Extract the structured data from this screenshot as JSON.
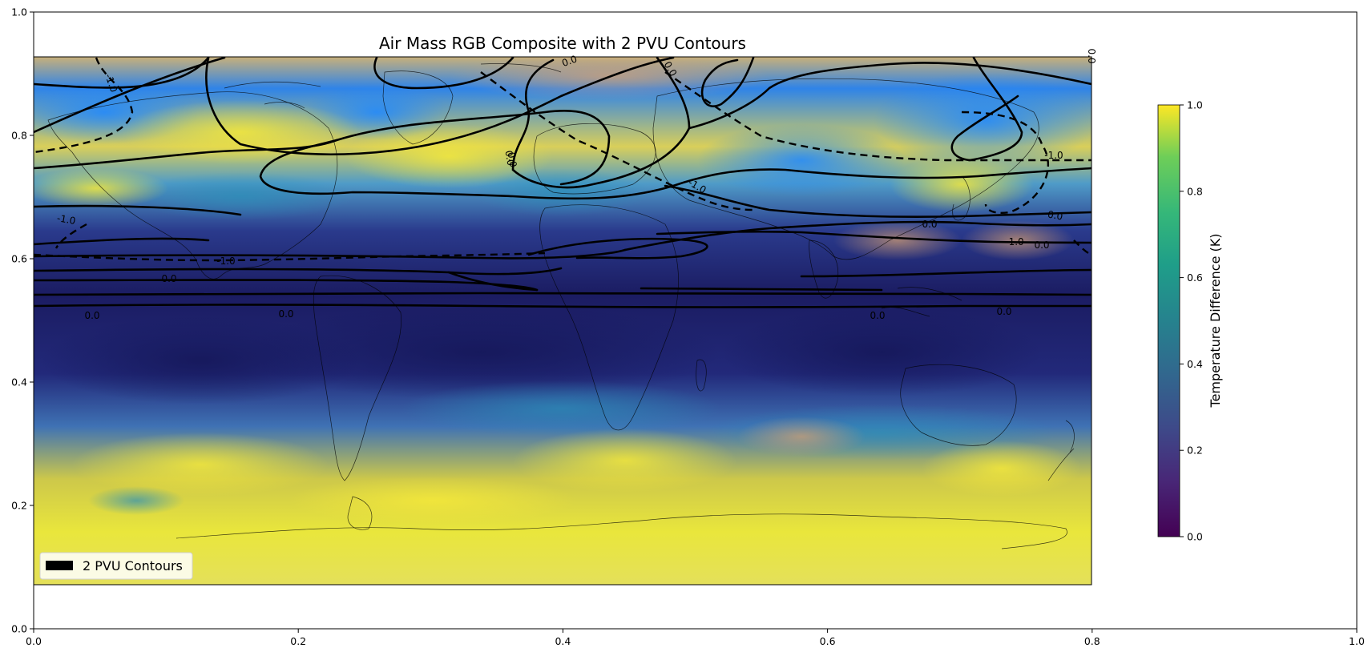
{
  "title": "Air Mass RGB Composite with 2 PVU Contours",
  "outer_axes": {
    "x_ticks": [
      "0.0",
      "0.2",
      "0.4",
      "0.6",
      "0.8",
      "1.0"
    ],
    "y_ticks": [
      "0.0",
      "0.2",
      "0.4",
      "0.6",
      "0.8",
      "1.0"
    ],
    "xlim": [
      0,
      1
    ],
    "ylim": [
      0,
      1
    ]
  },
  "legend": {
    "label": "2 PVU Contours",
    "placement": "lower-left",
    "swatch_color": "#000000"
  },
  "colorbar": {
    "label": "Temperature Difference (K)",
    "colormap": "viridis",
    "range": [
      0.0,
      1.0
    ],
    "ticks": [
      "0.0",
      "0.2",
      "0.4",
      "0.6",
      "0.8",
      "1.0"
    ]
  },
  "contour_labels": [
    "-1.0",
    "0.0",
    "0.0",
    "-1.0",
    "0.0",
    "-1.0",
    "-1.0",
    "0.0",
    "0.0",
    "-1.0",
    "0.0",
    "0.0",
    "0.0",
    "0.0",
    "0.0",
    "-1.0",
    "0.0",
    "0.0",
    "0.0"
  ],
  "colors": {
    "airmass_blue": "#2f7fe0",
    "airmass_navy": "#1c1f66",
    "airmass_yellow": "#e8e23a",
    "airmass_tan": "#c9a97a",
    "contour": "#000000"
  }
}
